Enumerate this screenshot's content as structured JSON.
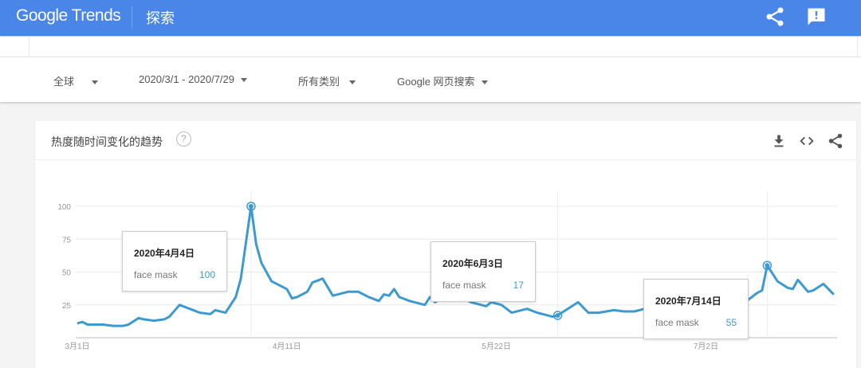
{
  "header": {
    "logo": "Google Trends",
    "section": "探索",
    "icons": [
      "share-icon",
      "feedback-icon"
    ]
  },
  "filters": {
    "region": "全球",
    "date_range": "2020/3/1 - 2020/7/29",
    "category": "所有类别",
    "search_type": "Google 网页搜索"
  },
  "card": {
    "title": "热度随时间变化的趋势",
    "help": "?",
    "icons": [
      "download-icon",
      "embed-icon",
      "share-icon"
    ]
  },
  "colors": {
    "header": "#4a86e8",
    "line": "#3d9ad1"
  },
  "tooltips": [
    {
      "date": "2020年4月4日",
      "term": "face mask",
      "value": "100"
    },
    {
      "date": "2020年6月3日",
      "term": "face mask",
      "value": "17"
    },
    {
      "date": "2020年7月14日",
      "term": "face mask",
      "value": "55"
    }
  ],
  "chart_data": {
    "type": "line",
    "xlim": [
      "2020-03-01",
      "2020-07-29"
    ],
    "ylim": [
      0,
      100
    ],
    "grid": true,
    "y_ticks": [
      "25",
      "50",
      "75",
      "100"
    ],
    "x_ticks": [
      {
        "date": "2020-03-01",
        "label": "3月1日"
      },
      {
        "date": "2020-04-11",
        "label": "4月11日"
      },
      {
        "date": "2020-05-22",
        "label": "5月22日"
      },
      {
        "date": "2020-07-02",
        "label": "7月2日"
      }
    ],
    "highlighted": [
      "2020-04-04",
      "2020-06-03",
      "2020-07-14"
    ],
    "series": [
      {
        "name": "face mask",
        "points": [
          [
            "2020-03-01",
            11
          ],
          [
            "2020-03-02",
            12
          ],
          [
            "2020-03-03",
            10
          ],
          [
            "2020-03-05",
            10
          ],
          [
            "2020-03-06",
            10
          ],
          [
            "2020-03-08",
            9
          ],
          [
            "2020-03-10",
            9
          ],
          [
            "2020-03-11",
            10
          ],
          [
            "2020-03-13",
            15
          ],
          [
            "2020-03-14",
            14
          ],
          [
            "2020-03-16",
            13
          ],
          [
            "2020-03-18",
            14
          ],
          [
            "2020-03-19",
            16
          ],
          [
            "2020-03-21",
            25
          ],
          [
            "2020-03-23",
            22
          ],
          [
            "2020-03-25",
            19
          ],
          [
            "2020-03-27",
            18
          ],
          [
            "2020-03-28",
            21
          ],
          [
            "2020-03-30",
            19
          ],
          [
            "2020-04-01",
            31
          ],
          [
            "2020-04-02",
            45
          ],
          [
            "2020-04-04",
            100
          ],
          [
            "2020-04-05",
            71
          ],
          [
            "2020-04-06",
            57
          ],
          [
            "2020-04-08",
            43
          ],
          [
            "2020-04-11",
            37
          ],
          [
            "2020-04-12",
            30
          ],
          [
            "2020-04-13",
            31
          ],
          [
            "2020-04-15",
            35
          ],
          [
            "2020-04-16",
            42
          ],
          [
            "2020-04-18",
            45
          ],
          [
            "2020-04-20",
            32
          ],
          [
            "2020-04-21",
            33
          ],
          [
            "2020-04-23",
            35
          ],
          [
            "2020-04-25",
            35
          ],
          [
            "2020-04-27",
            31
          ],
          [
            "2020-04-29",
            28
          ],
          [
            "2020-04-30",
            33
          ],
          [
            "2020-05-01",
            32
          ],
          [
            "2020-05-02",
            37
          ],
          [
            "2020-05-03",
            31
          ],
          [
            "2020-05-05",
            28
          ],
          [
            "2020-05-08",
            25
          ],
          [
            "2020-05-09",
            31
          ],
          [
            "2020-05-10",
            27
          ],
          [
            "2020-05-13",
            34
          ],
          [
            "2020-05-15",
            31
          ],
          [
            "2020-05-17",
            27
          ],
          [
            "2020-05-20",
            24
          ],
          [
            "2020-05-21",
            27
          ],
          [
            "2020-05-23",
            25
          ],
          [
            "2020-05-25",
            19
          ],
          [
            "2020-05-28",
            22
          ],
          [
            "2020-05-30",
            19
          ],
          [
            "2020-06-02",
            16
          ],
          [
            "2020-06-03",
            17
          ],
          [
            "2020-06-07",
            27
          ],
          [
            "2020-06-09",
            19
          ],
          [
            "2020-06-11",
            19
          ],
          [
            "2020-06-14",
            21
          ],
          [
            "2020-06-16",
            20
          ],
          [
            "2020-06-18",
            20
          ],
          [
            "2020-06-20",
            22
          ],
          [
            "2020-06-22",
            25
          ],
          [
            "2020-06-25",
            22
          ],
          [
            "2020-06-30",
            25
          ],
          [
            "2020-07-05",
            24
          ],
          [
            "2020-07-10",
            28
          ],
          [
            "2020-07-12",
            34
          ],
          [
            "2020-07-13",
            36
          ],
          [
            "2020-07-14",
            55
          ],
          [
            "2020-07-16",
            43
          ],
          [
            "2020-07-18",
            38
          ],
          [
            "2020-07-19",
            37
          ],
          [
            "2020-07-20",
            44
          ],
          [
            "2020-07-22",
            35
          ],
          [
            "2020-07-23",
            36
          ],
          [
            "2020-07-25",
            41
          ],
          [
            "2020-07-27",
            33
          ]
        ]
      }
    ]
  }
}
